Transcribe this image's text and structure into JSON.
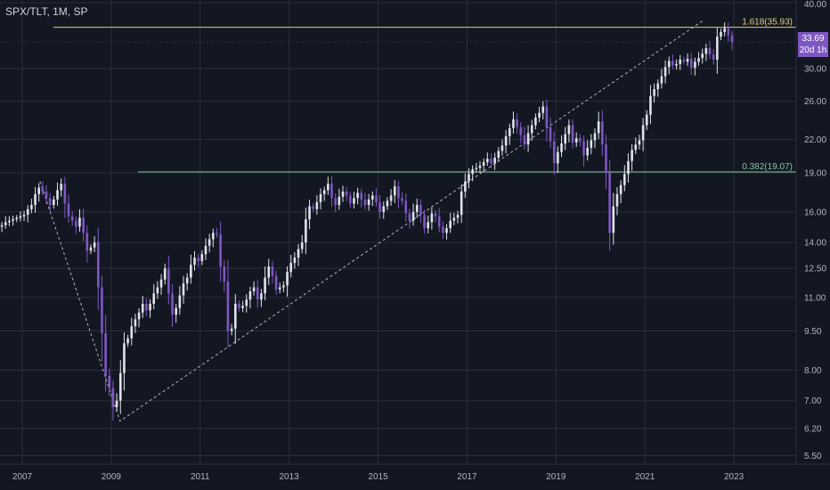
{
  "header": {
    "symbol": "SPX/TLT, 1M, SP"
  },
  "last_price": {
    "value": "33.69",
    "countdown": "20d 1h"
  },
  "colors": {
    "background": "#131722",
    "grid": "#2a2e39",
    "axis_text": "#b2b5be",
    "candle_up": "#e0e3eb",
    "candle_down": "#7e57c2",
    "fib_upper": "#d8d37a",
    "fib_lower": "#84c6a0",
    "trend_line": "#d1d4dc",
    "badge": "#7e57c2"
  },
  "chart_data": {
    "type": "candlestick",
    "scale": "log",
    "x_range": [
      2006.5,
      2024.4
    ],
    "y_range": [
      5.3,
      40.5
    ],
    "x_ticks": [
      "2007",
      "2009",
      "2011",
      "2013",
      "2015",
      "2017",
      "2019",
      "2021",
      "2023"
    ],
    "y_ticks": [
      "40.00",
      "30.00",
      "26.00",
      "22.00",
      "19.00",
      "16.00",
      "14.00",
      "12.50",
      "11.00",
      "9.50",
      "8.00",
      "7.00",
      "6.20",
      "5.50"
    ],
    "grid": true,
    "fib_levels": [
      {
        "label": "1.618(35.93)",
        "value": 35.93,
        "x_start": 2007.7
      },
      {
        "label": "0.382(19.07)",
        "value": 19.07,
        "x_start": 2009.6
      }
    ],
    "trend_line": [
      [
        2007.4,
        18.3
      ],
      [
        2009.2,
        6.4
      ],
      [
        2022.3,
        37.0
      ]
    ],
    "close_monthly": [
      15.6,
      15.4,
      15.5,
      15.3,
      15.2,
      15.0,
      15.1,
      15.3,
      15.4,
      15.5,
      15.6,
      15.7,
      15.8,
      16.2,
      16.5,
      17.3,
      17.8,
      17.5,
      17.0,
      16.5,
      16.9,
      17.6,
      18.1,
      16.6,
      15.7,
      15.4,
      15.0,
      15.6,
      14.6,
      13.5,
      13.7,
      14.0,
      11.5,
      9.4,
      7.8,
      7.4,
      6.8,
      7.0,
      7.9,
      9.0,
      9.2,
      9.7,
      10.0,
      10.3,
      10.7,
      10.4,
      10.7,
      11.2,
      11.5,
      11.9,
      12.5,
      11.2,
      10.2,
      10.5,
      11.1,
      11.7,
      12.0,
      12.7,
      13.1,
      12.9,
      13.3,
      13.8,
      14.2,
      14.6,
      14.5,
      12.6,
      11.8,
      9.5,
      9.6,
      10.7,
      10.5,
      10.6,
      10.9,
      11.3,
      11.5,
      10.9,
      11.2,
      12.0,
      12.6,
      12.1,
      11.4,
      11.5,
      11.6,
      12.3,
      12.8,
      13.1,
      13.6,
      14.0,
      15.5,
      16.4,
      16.2,
      16.7,
      17.3,
      17.6,
      18.1,
      17.0,
      16.5,
      17.1,
      17.5,
      17.2,
      16.6,
      17.0,
      17.4,
      16.9,
      16.5,
      16.9,
      17.2,
      16.7,
      16.0,
      16.4,
      16.8,
      17.2,
      17.9,
      17.0,
      16.8,
      15.9,
      15.4,
      16.0,
      16.5,
      15.8,
      14.9,
      15.3,
      15.9,
      15.7,
      15.0,
      14.6,
      14.9,
      15.4,
      15.6,
      15.8,
      17.5,
      18.3,
      18.9,
      19.3,
      19.4,
      19.6,
      19.9,
      20.2,
      19.8,
      20.3,
      20.9,
      21.4,
      22.3,
      23.1,
      24.0,
      23.2,
      22.4,
      21.5,
      22.6,
      23.4,
      24.2,
      24.7,
      25.4,
      23.2,
      21.8,
      19.8,
      20.8,
      21.6,
      22.5,
      23.4,
      21.7,
      22.1,
      21.8,
      20.5,
      21.2,
      21.9,
      22.6,
      23.8,
      21.5,
      19.0,
      14.6,
      16.4,
      17.3,
      18.0,
      18.9,
      20.0,
      21.0,
      21.5,
      21.9,
      23.4,
      24.5,
      26.6,
      27.4,
      28.1,
      29.0,
      30.2,
      31.0,
      30.4,
      30.6,
      31.2,
      30.9,
      31.3,
      30.1,
      30.9,
      31.4,
      32.0,
      32.8,
      31.9,
      31.2,
      34.5,
      35.2,
      35.8,
      34.7,
      33.69
    ],
    "start": "2006-01"
  }
}
